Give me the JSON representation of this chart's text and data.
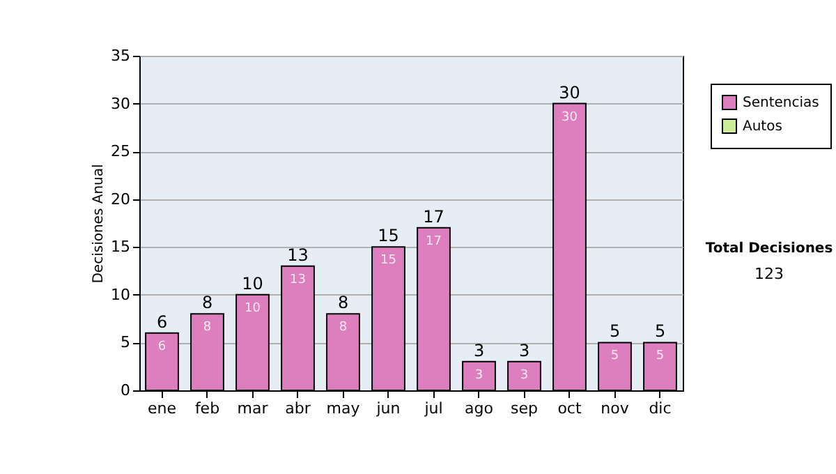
{
  "chart_data": {
    "type": "bar",
    "stacked": true,
    "ylabel": "Decisiones Anual",
    "categories": [
      "ene",
      "feb",
      "mar",
      "abr",
      "may",
      "jun",
      "jul",
      "ago",
      "sep",
      "oct",
      "nov",
      "dic"
    ],
    "series": [
      {
        "name": "Sentencias",
        "color": "#dd7fbf",
        "values": [
          6,
          8,
          10,
          13,
          8,
          15,
          17,
          3,
          3,
          30,
          5,
          5
        ],
        "value_labels": [
          "6",
          "8",
          "10",
          "13",
          "8",
          "15",
          "17",
          "3",
          "3",
          "30",
          "5",
          "5"
        ]
      },
      {
        "name": "Autos",
        "color": "#ccee99",
        "values": [
          0,
          0,
          0,
          0,
          0,
          0,
          0,
          0,
          0,
          0,
          0,
          0
        ],
        "value_labels": [
          null,
          null,
          null,
          null,
          null,
          null,
          null,
          null,
          null,
          null,
          null,
          null
        ]
      }
    ],
    "totals": [
      "6",
      "8",
      "10",
      "13",
      "8",
      "15",
      "17",
      "3",
      "3",
      "30",
      "5",
      "5"
    ],
    "ylim": [
      0,
      35
    ],
    "yticks": [
      0,
      5,
      10,
      15,
      20,
      25,
      30,
      35
    ],
    "grid": "y",
    "legend": "right",
    "annotations": [
      "Total Decisiones",
      "123"
    ]
  }
}
